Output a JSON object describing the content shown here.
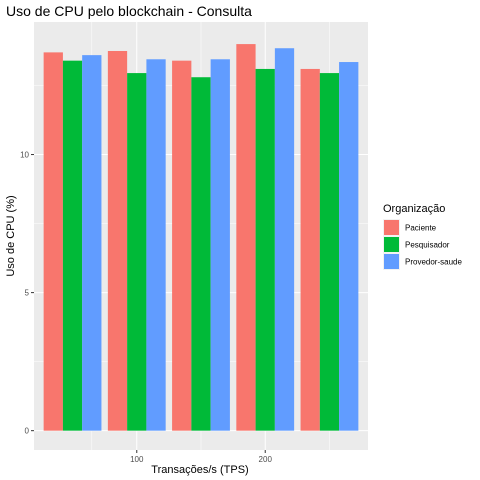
{
  "chart_data": {
    "type": "bar",
    "title": "Uso de CPU pelo blockchain - Consulta",
    "xlabel": "Transações/s (TPS)",
    "ylabel": "Uso de CPU (%)",
    "x": [
      50,
      100,
      150,
      200,
      250
    ],
    "xticks": [
      100,
      200
    ],
    "xlim": [
      20,
      280
    ],
    "yticks": [
      0,
      5,
      10
    ],
    "ylim": [
      -0.7,
      14.8
    ],
    "grid": true,
    "legend_title": "Organização",
    "legend_position": "right",
    "series": [
      {
        "name": "Paciente",
        "color": "#F8766D",
        "values": [
          13.7,
          13.75,
          13.4,
          14.0,
          13.1
        ]
      },
      {
        "name": "Pesquisador",
        "color": "#00BA38",
        "values": [
          13.4,
          12.95,
          12.8,
          13.1,
          12.95
        ]
      },
      {
        "name": "Provedor-saude",
        "color": "#619CFF",
        "values": [
          13.6,
          13.45,
          13.45,
          13.85,
          13.35
        ]
      }
    ]
  }
}
